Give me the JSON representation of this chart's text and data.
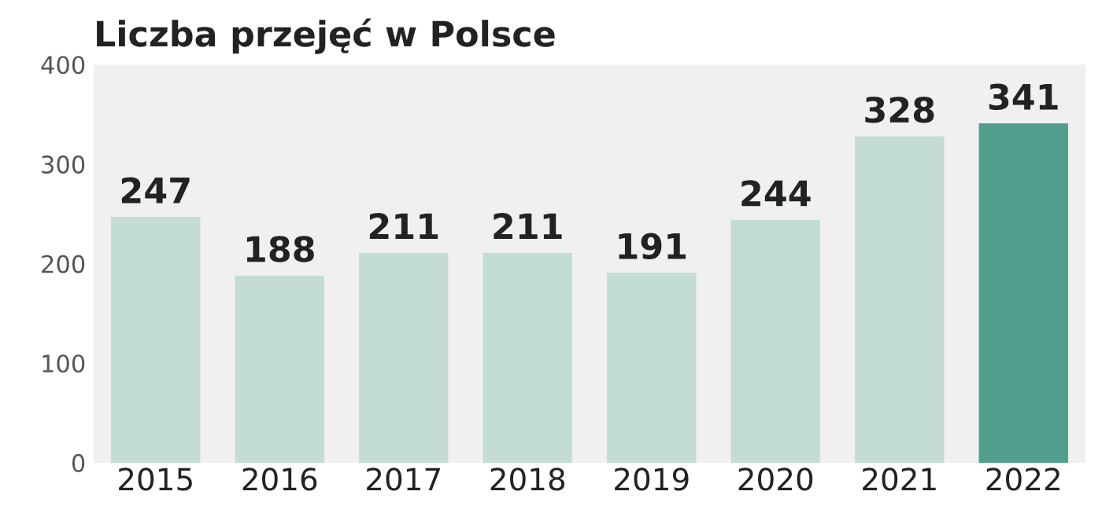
{
  "chart_data": {
    "type": "bar",
    "title": "Liczba przejęć w Polsce",
    "categories": [
      "2015",
      "2016",
      "2017",
      "2018",
      "2019",
      "2020",
      "2021",
      "2022"
    ],
    "values": [
      247,
      188,
      211,
      211,
      191,
      244,
      328,
      341
    ],
    "colors": [
      "#c3ddd4",
      "#c3ddd4",
      "#c3ddd4",
      "#c3ddd4",
      "#c3ddd4",
      "#c3ddd4",
      "#c3ddd4",
      "#519e8f"
    ],
    "ylim": [
      0,
      400
    ],
    "yticks": [
      0,
      100,
      200,
      300,
      400
    ],
    "grid": false,
    "data_labels": true
  }
}
